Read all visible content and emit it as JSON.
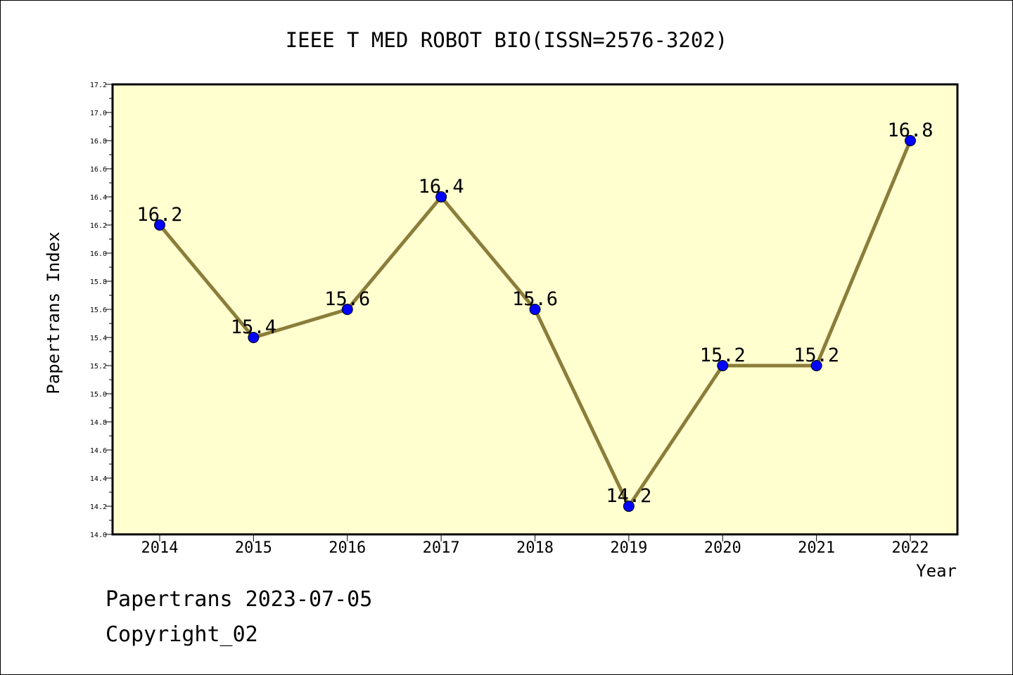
{
  "chart_data": {
    "type": "line",
    "title": "IEEE T MED ROBOT BIO(ISSN=2576-3202)",
    "xlabel": "Year",
    "ylabel": "Papertrans Index",
    "categories": [
      "2014",
      "2015",
      "2016",
      "2017",
      "2018",
      "2019",
      "2020",
      "2021",
      "2022"
    ],
    "series": [
      {
        "values": [
          16.2,
          15.4,
          15.6,
          16.4,
          15.6,
          14.2,
          15.2,
          15.2,
          16.8
        ],
        "data_labels": [
          "16.2",
          "15.4",
          "15.6",
          "16.4",
          "15.6",
          "14.2",
          "15.2",
          "15.2",
          "16.8"
        ]
      }
    ],
    "ylim": [
      14.0,
      17.2
    ],
    "yticks": [
      "14.0",
      "14.2",
      "14.4",
      "14.6",
      "14.8",
      "15.0",
      "15.2",
      "15.4",
      "15.6",
      "15.8",
      "16.0",
      "16.2",
      "16.4",
      "16.6",
      "16.8",
      "17.0",
      "17.2"
    ],
    "grid": false,
    "colors": {
      "plot_background": "#ffffd0",
      "line": "#8b7d3a",
      "marker": "#0000ff"
    }
  },
  "footer": {
    "line1": "Papertrans 2023-07-05",
    "line2": "Copyright_02"
  }
}
